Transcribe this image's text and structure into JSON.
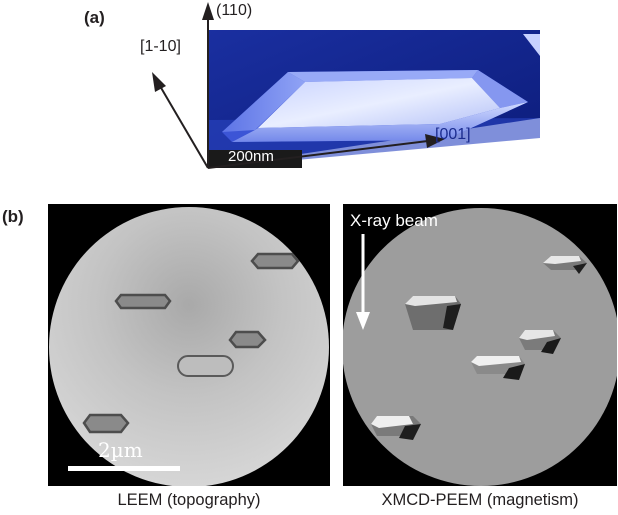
{
  "figure": {
    "panel_a": {
      "label": "(a)",
      "axes": {
        "vertical": "(110)",
        "diagonal": "[1-10]",
        "horizontal": "[001]"
      },
      "scale_bar": "200nm"
    },
    "panel_b": {
      "label": "(b)",
      "left_image": {
        "caption": "LEEM (topography)",
        "scale_bar": "2µm"
      },
      "right_image": {
        "caption": "XMCD-PEEM (magnetism)",
        "annotation": "X-ray beam"
      }
    }
  }
}
